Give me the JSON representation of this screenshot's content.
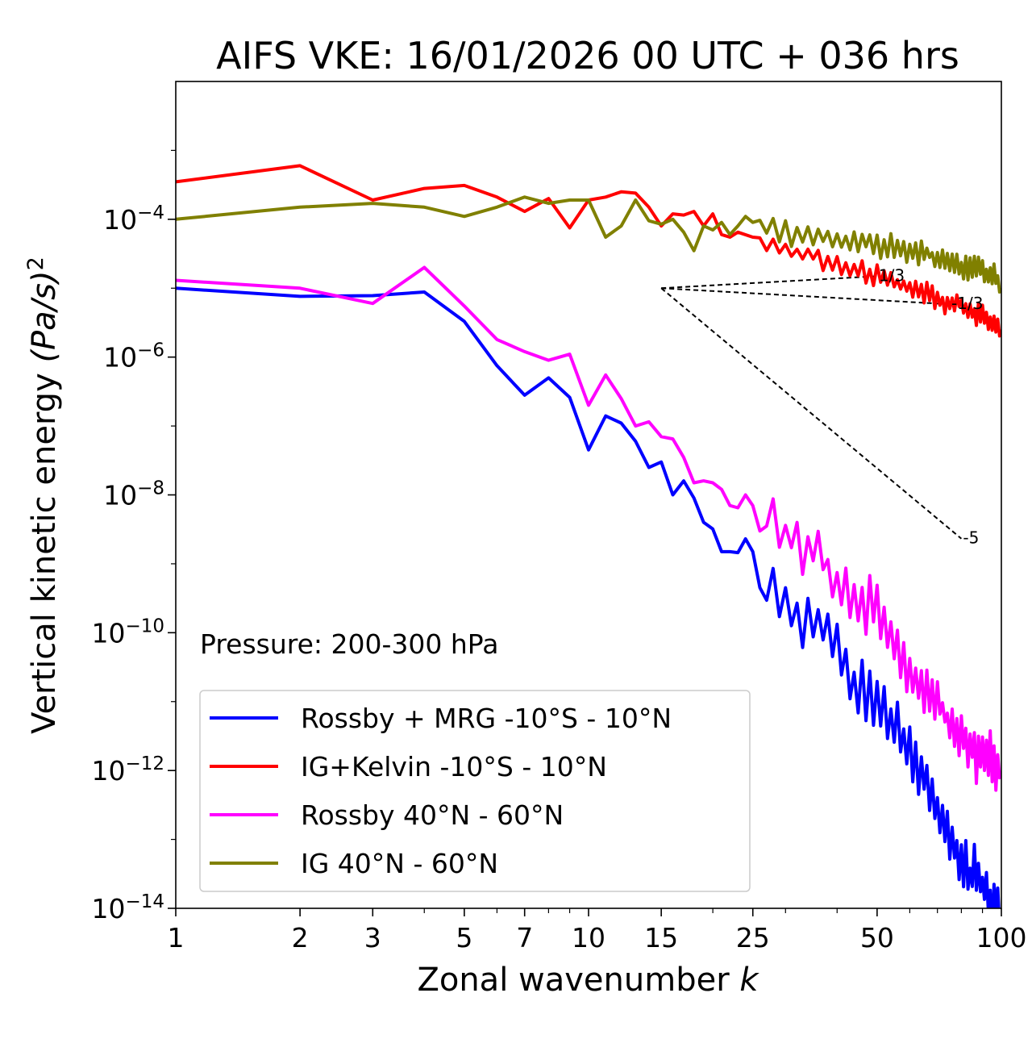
{
  "chart_data": {
    "type": "line",
    "title": "AIFS VKE: 16/01/2026 00 UTC + 036 hrs",
    "xlabel": "Zonal wavenumber",
    "xlabel_symbol": "k",
    "ylabel": "Vertical kinetic energy",
    "ylabel_unit": "(Pa/s)",
    "ylabel_exponent": "2",
    "xscale": "log",
    "yscale": "log",
    "xlim": [
      1,
      100
    ],
    "ylim": [
      1e-14,
      0.01
    ],
    "x_ticks": [
      {
        "value": 1,
        "label": "1"
      },
      {
        "value": 2,
        "label": "2"
      },
      {
        "value": 3,
        "label": "3"
      },
      {
        "value": 5,
        "label": "5"
      },
      {
        "value": 7,
        "label": "7"
      },
      {
        "value": 10,
        "label": "10"
      },
      {
        "value": 15,
        "label": "15"
      },
      {
        "value": 25,
        "label": "25"
      },
      {
        "value": 50,
        "label": "50"
      },
      {
        "value": 100,
        "label": "100"
      }
    ],
    "y_ticks": [
      {
        "exp": -4,
        "base": "10",
        "sup": "−4"
      },
      {
        "exp": -6,
        "base": "10",
        "sup": "−6"
      },
      {
        "exp": -8,
        "base": "10",
        "sup": "−8"
      },
      {
        "exp": -10,
        "base": "10",
        "sup": "−10"
      },
      {
        "exp": -12,
        "base": "10",
        "sup": "−12"
      },
      {
        "exp": -14,
        "base": "10",
        "sup": "−14"
      }
    ],
    "annotation": "Pressure: 200-300 hPa",
    "legend_position": "lower-left",
    "series": [
      {
        "name": "Rossby + MRG -10°S - 10°N",
        "color": "#0000ff",
        "anchors": [
          [
            1,
            1e-05
          ],
          [
            2,
            7.6e-06
          ],
          [
            3,
            7.8e-06
          ],
          [
            4,
            8.8e-06
          ],
          [
            5,
            3.3e-06
          ],
          [
            6,
            7.5e-07
          ],
          [
            7,
            2.8e-07
          ],
          [
            8,
            5e-07
          ],
          [
            9,
            2.6e-07
          ],
          [
            10,
            4.5e-08
          ],
          [
            11,
            1.4e-07
          ],
          [
            12,
            1.1e-07
          ],
          [
            13,
            6e-08
          ],
          [
            14,
            2.5e-08
          ],
          [
            15,
            3e-08
          ],
          [
            16,
            1e-08
          ],
          [
            17,
            1.6e-08
          ],
          [
            18,
            9e-09
          ],
          [
            19,
            4e-09
          ],
          [
            20,
            3.2e-09
          ],
          [
            21,
            1.5e-09
          ],
          [
            22,
            1.5e-09
          ],
          [
            23,
            1.45e-09
          ],
          [
            24,
            2.3e-09
          ],
          [
            25,
            1.5e-09
          ],
          [
            26,
            4.5e-10
          ],
          [
            28,
            4e-10
          ],
          [
            30,
            3e-10
          ],
          [
            33,
            1e-10
          ],
          [
            36,
            1.5e-10
          ],
          [
            40,
            6e-11
          ],
          [
            45,
            1.5e-11
          ],
          [
            50,
            1e-11
          ],
          [
            55,
            4e-12
          ],
          [
            60,
            2e-12
          ],
          [
            65,
            7e-13
          ],
          [
            70,
            2.5e-13
          ],
          [
            75,
            1e-13
          ],
          [
            80,
            5e-14
          ],
          [
            85,
            3e-14
          ],
          [
            90,
            2e-14
          ],
          [
            95,
            1.2e-14
          ],
          [
            100,
            1e-14
          ]
        ],
        "noise_from": 26,
        "noise_amp": 0.3
      },
      {
        "name": "IG+Kelvin -10°S - 10°N",
        "color": "#ff0000",
        "anchors": [
          [
            1,
            0.00035
          ],
          [
            2,
            0.0006
          ],
          [
            3,
            0.00019
          ],
          [
            4,
            0.00028
          ],
          [
            5,
            0.00031
          ],
          [
            6,
            0.00021
          ],
          [
            7,
            0.00013
          ],
          [
            8,
            0.0002
          ],
          [
            9,
            7.5e-05
          ],
          [
            10,
            0.00019
          ],
          [
            11,
            0.00021
          ],
          [
            12,
            0.00025
          ],
          [
            13,
            0.00024
          ],
          [
            14,
            0.00015
          ],
          [
            15,
            8e-05
          ],
          [
            16,
            0.00012
          ],
          [
            17,
            0.000115
          ],
          [
            18,
            0.00013
          ],
          [
            19,
            8e-05
          ],
          [
            20,
            0.00012
          ],
          [
            21,
            6e-05
          ],
          [
            22,
            5.5e-05
          ],
          [
            23,
            6.5e-05
          ],
          [
            25,
            5.5e-05
          ],
          [
            30,
            4e-05
          ],
          [
            35,
            3e-05
          ],
          [
            40,
            2.2e-05
          ],
          [
            45,
            1.8e-05
          ],
          [
            50,
            1.4e-05
          ],
          [
            55,
            1.2e-05
          ],
          [
            60,
            1e-05
          ],
          [
            65,
            8.5e-06
          ],
          [
            70,
            7e-06
          ],
          [
            75,
            6e-06
          ],
          [
            80,
            5.5e-06
          ],
          [
            85,
            4.5e-06
          ],
          [
            90,
            4e-06
          ],
          [
            95,
            3.2e-06
          ],
          [
            100,
            2.5e-06
          ]
        ],
        "noise_from": 26,
        "noise_amp": 0.12
      },
      {
        "name": "Rossby 40°N - 60°N",
        "color": "#ff00ff",
        "anchors": [
          [
            1,
            1.3e-05
          ],
          [
            2,
            1e-05
          ],
          [
            3,
            6e-06
          ],
          [
            4,
            2e-05
          ],
          [
            5,
            5.5e-06
          ],
          [
            6,
            1.8e-06
          ],
          [
            7,
            1.2e-06
          ],
          [
            8,
            9e-07
          ],
          [
            9,
            1.1e-06
          ],
          [
            10,
            2e-07
          ],
          [
            11,
            5.5e-07
          ],
          [
            12,
            2.5e-07
          ],
          [
            13,
            1e-07
          ],
          [
            14,
            1.15e-07
          ],
          [
            15,
            7e-08
          ],
          [
            16,
            6.5e-08
          ],
          [
            17,
            3.5e-08
          ],
          [
            18,
            1.5e-08
          ],
          [
            19,
            1.6e-08
          ],
          [
            20,
            1.5e-08
          ],
          [
            21,
            1.2e-08
          ],
          [
            22,
            7e-09
          ],
          [
            23,
            6.5e-09
          ],
          [
            24,
            1e-08
          ],
          [
            25,
            7e-09
          ],
          [
            26,
            3e-09
          ],
          [
            28,
            5.5e-09
          ],
          [
            30,
            2.5e-09
          ],
          [
            33,
            1.5e-09
          ],
          [
            36,
            1.6e-09
          ],
          [
            40,
            4e-10
          ],
          [
            45,
            3e-10
          ],
          [
            50,
            2e-10
          ],
          [
            55,
            8e-11
          ],
          [
            60,
            3e-11
          ],
          [
            65,
            1.5e-11
          ],
          [
            70,
            1e-11
          ],
          [
            75,
            5e-12
          ],
          [
            80,
            3e-12
          ],
          [
            85,
            2e-12
          ],
          [
            90,
            1.8e-12
          ],
          [
            95,
            1.3e-12
          ],
          [
            100,
            1e-12
          ]
        ],
        "noise_from": 26,
        "noise_amp": 0.3
      },
      {
        "name": "IG 40°N - 60°N",
        "color": "#808000",
        "anchors": [
          [
            1,
            0.0001
          ],
          [
            2,
            0.00015
          ],
          [
            3,
            0.00017
          ],
          [
            4,
            0.00015
          ],
          [
            5,
            0.00011
          ],
          [
            6,
            0.00015
          ],
          [
            7,
            0.00021
          ],
          [
            8,
            0.00017
          ],
          [
            9,
            0.00019
          ],
          [
            10,
            0.00019
          ],
          [
            11,
            5.5e-05
          ],
          [
            12,
            8e-05
          ],
          [
            13,
            0.00019
          ],
          [
            14,
            9.5e-05
          ],
          [
            15,
            8.5e-05
          ],
          [
            16,
            0.0001
          ],
          [
            17,
            6.5e-05
          ],
          [
            18,
            3.5e-05
          ],
          [
            19,
            8e-05
          ],
          [
            20,
            7e-05
          ],
          [
            21,
            9e-05
          ],
          [
            22,
            6e-05
          ],
          [
            23,
            8e-05
          ],
          [
            24,
            0.00011
          ],
          [
            25,
            9e-05
          ],
          [
            30,
            6.5e-05
          ],
          [
            35,
            5.5e-05
          ],
          [
            40,
            5e-05
          ],
          [
            45,
            4.5e-05
          ],
          [
            50,
            4e-05
          ],
          [
            55,
            3.8e-05
          ],
          [
            60,
            3.5e-05
          ],
          [
            65,
            3.2e-05
          ],
          [
            70,
            3e-05
          ],
          [
            75,
            2.5e-05
          ],
          [
            80,
            2.2e-05
          ],
          [
            85,
            2e-05
          ],
          [
            90,
            1.8e-05
          ],
          [
            95,
            1.5e-05
          ],
          [
            100,
            1e-05
          ]
        ],
        "noise_from": 26,
        "noise_amp": 0.13
      }
    ],
    "reference_slopes": [
      {
        "label": "1/3",
        "slope": 0.3333,
        "x0": 15,
        "y0": 1e-05,
        "x1": 50
      },
      {
        "label": "-1/3",
        "slope": -0.3333,
        "x0": 15,
        "y0": 1e-05,
        "x1": 75
      },
      {
        "label": "-5",
        "slope": -5,
        "x0": 15,
        "y0": 1e-05,
        "x1": 80
      }
    ]
  }
}
